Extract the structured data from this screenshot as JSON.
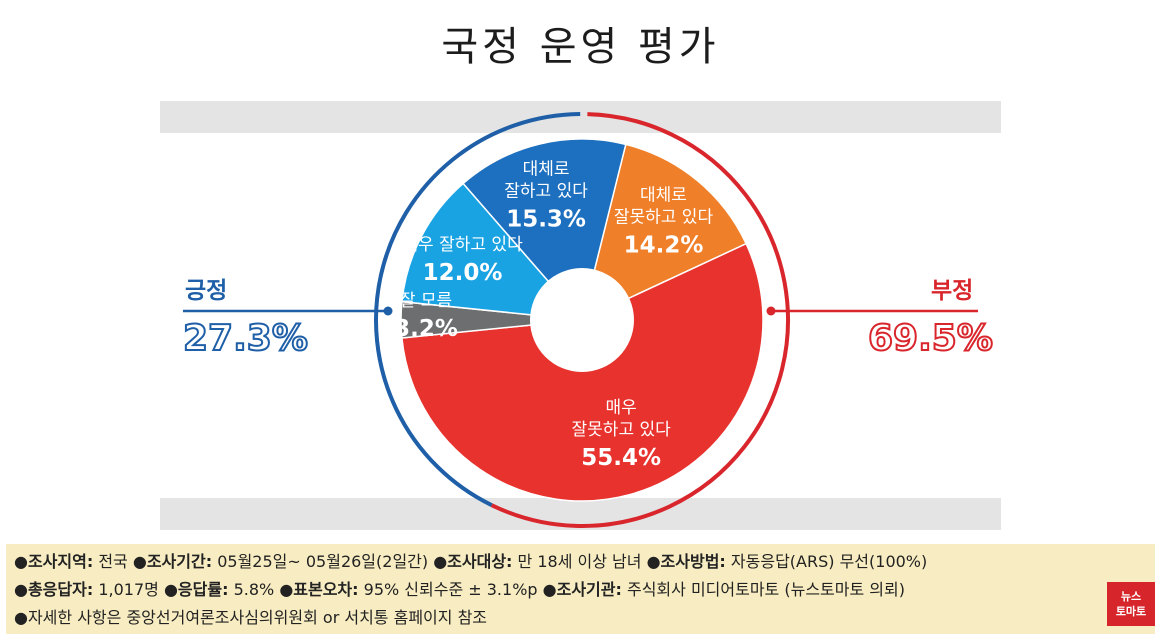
{
  "title": "국정 운영 평가",
  "positive": {
    "label": "긍정",
    "value": "27.3%",
    "color": "#1f5fa8"
  },
  "negative": {
    "label": "부정",
    "value": "69.5%",
    "color": "#d9262c"
  },
  "chart_data": {
    "type": "pie",
    "title": "국정 운영 평가",
    "donut": true,
    "slices": [
      {
        "label_lines": [
          "대체로",
          "잘못하고 있다"
        ],
        "value": 14.2,
        "value_text": "14.2%",
        "color": "#f07f2a"
      },
      {
        "label_lines": [
          "매우",
          "잘못하고 있다"
        ],
        "value": 55.4,
        "value_text": "55.4%",
        "color": "#e8322e"
      },
      {
        "label_lines": [
          "잘 모름"
        ],
        "value": 3.2,
        "value_text": "3.2%",
        "color": "#6d6e70"
      },
      {
        "label_lines": [
          "매우 잘하고 있다"
        ],
        "value": 12.0,
        "value_text": "12.0%",
        "color": "#1aa3e3"
      },
      {
        "label_lines": [
          "대체로",
          "잘하고 있다"
        ],
        "value": 15.3,
        "value_text": "15.3%",
        "color": "#1d6fbf"
      }
    ],
    "groups": [
      {
        "name": "긍정",
        "value": 27.3
      },
      {
        "name": "부정",
        "value": 69.5
      }
    ]
  },
  "footer": {
    "line1": [
      {
        "key": "●조사지역:",
        "val": " 전국 "
      },
      {
        "key": "●조사기간:",
        "val": " 05월25일~ 05월26일(2일간)  "
      },
      {
        "key": "●조사대상:",
        "val": " 만 18세 이상 남녀 "
      },
      {
        "key": "●조사방법:",
        "val": " 자동응답(ARS) 무선(100%)"
      }
    ],
    "line2": [
      {
        "key": "●총응답자:",
        "val": " 1,017명 "
      },
      {
        "key": "●응답률:",
        "val": " 5.8% "
      },
      {
        "key": "●표본오차:",
        "val": " 95% 신뢰수준 ± 3.1%p "
      },
      {
        "key": "●조사기관:",
        "val": " 주식회사 미디어토마토  (뉴스토마토 의뢰)"
      }
    ],
    "line3": "●자세한 사항은 중앙선거여론조사심의위원회 or  서치통 홈페이지 참조"
  },
  "logo": {
    "line1": "뉴스",
    "line2": "토마토"
  }
}
